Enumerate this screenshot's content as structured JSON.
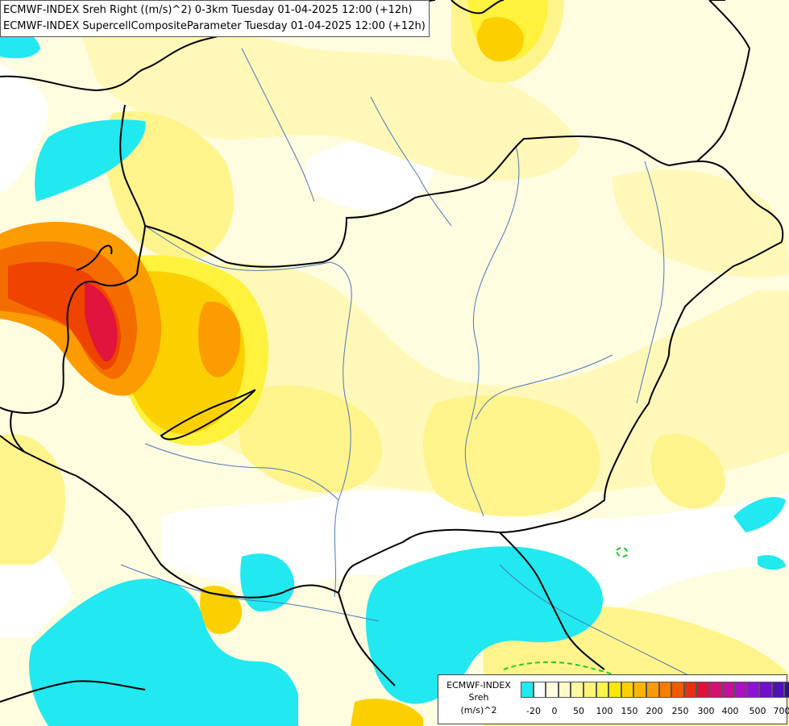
{
  "title_lines": [
    "ECMWF-INDEX Sreh Right ((m/s)^2) 0-3km Tuesday 01-04-2025 12:00 (+12h)",
    "ECMWF-INDEX SupercellCompositeParameter Tuesday 01-04-2025 12:00 (+12h)"
  ],
  "legend": {
    "title": "ECMWF-INDEX",
    "variable": "Sreh",
    "unit": "(m/s)^2",
    "swatch_colors": [
      "#22e8f0",
      "#ffffff",
      "#ffffe0",
      "#fffac8",
      "#fff6a0",
      "#fff37a",
      "#fff24a",
      "#fae800",
      "#fcd000",
      "#fcb400",
      "#fc9a00",
      "#f87c00",
      "#f05a00",
      "#e83010",
      "#e0103a",
      "#d41070",
      "#c4109c",
      "#ac10c4",
      "#9010d8",
      "#7010c8",
      "#5010b4",
      "#301098",
      "#101878"
    ],
    "tick_labels": [
      "-20",
      "0",
      "50",
      "100",
      "150",
      "200",
      "250",
      "300",
      "400",
      "500",
      "700"
    ]
  },
  "colors": {
    "white": "#ffffff",
    "very_pale": "#fffce0",
    "pale": "#fff8b8",
    "light_yellow": "#fff48c",
    "yellow": "#fff23c",
    "gold": "#fcd000",
    "orange": "#fc9c00",
    "dark_orange": "#f46c00",
    "red_orange": "#ee4400",
    "red": "#e0143c",
    "cyan": "#22e8f0",
    "scp_contour": "#22cc22",
    "border_line": "#000000",
    "river_line": "#4c78b8"
  }
}
